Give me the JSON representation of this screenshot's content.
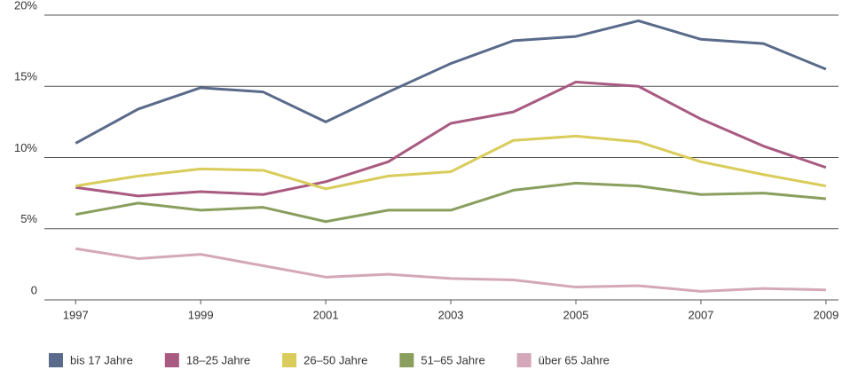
{
  "chart_data": {
    "type": "line",
    "x": [
      1997,
      1998,
      1999,
      2000,
      2001,
      2002,
      2003,
      2004,
      2005,
      2006,
      2007,
      2008,
      2009
    ],
    "xlim": [
      1996.5,
      2009.2
    ],
    "xticks": [
      1997,
      1999,
      2001,
      2003,
      2005,
      2007,
      2009
    ],
    "ylim": [
      0,
      20
    ],
    "yticks": [
      0,
      {
        "value": 5,
        "label": "5%"
      },
      {
        "value": 10,
        "label": "10%"
      },
      {
        "value": 15,
        "label": "15%"
      },
      {
        "value": 20,
        "label": "20%"
      }
    ],
    "grid": true,
    "legend": "bottom",
    "series": [
      {
        "name": "bis 17 Jahre",
        "color": "#5a6a8a",
        "values": [
          11.0,
          13.4,
          14.9,
          14.6,
          12.5,
          14.6,
          16.6,
          18.2,
          18.5,
          19.6,
          18.3,
          18.0,
          16.2
        ]
      },
      {
        "name": "18–25 Jahre",
        "color": "#a85a80",
        "values": [
          7.9,
          7.3,
          7.6,
          7.4,
          8.3,
          9.7,
          12.4,
          13.2,
          15.3,
          15.0,
          12.7,
          10.8,
          9.3
        ]
      },
      {
        "name": "26–50 Jahre",
        "color": "#d9cc5a",
        "values": [
          8.0,
          8.7,
          9.2,
          9.1,
          7.8,
          8.7,
          9.0,
          11.2,
          11.5,
          11.1,
          9.7,
          8.8,
          8.0
        ]
      },
      {
        "name": "51–65 Jahre",
        "color": "#8a9e5e",
        "values": [
          6.0,
          6.8,
          6.3,
          6.5,
          5.5,
          6.3,
          6.3,
          7.7,
          8.2,
          8.0,
          7.4,
          7.5,
          7.1
        ]
      },
      {
        "name": "über 65 Jahre",
        "color": "#d4a8b8",
        "values": [
          3.6,
          2.9,
          3.2,
          2.4,
          1.6,
          1.8,
          1.5,
          1.4,
          0.9,
          1.0,
          0.6,
          0.8,
          0.7
        ]
      }
    ]
  }
}
